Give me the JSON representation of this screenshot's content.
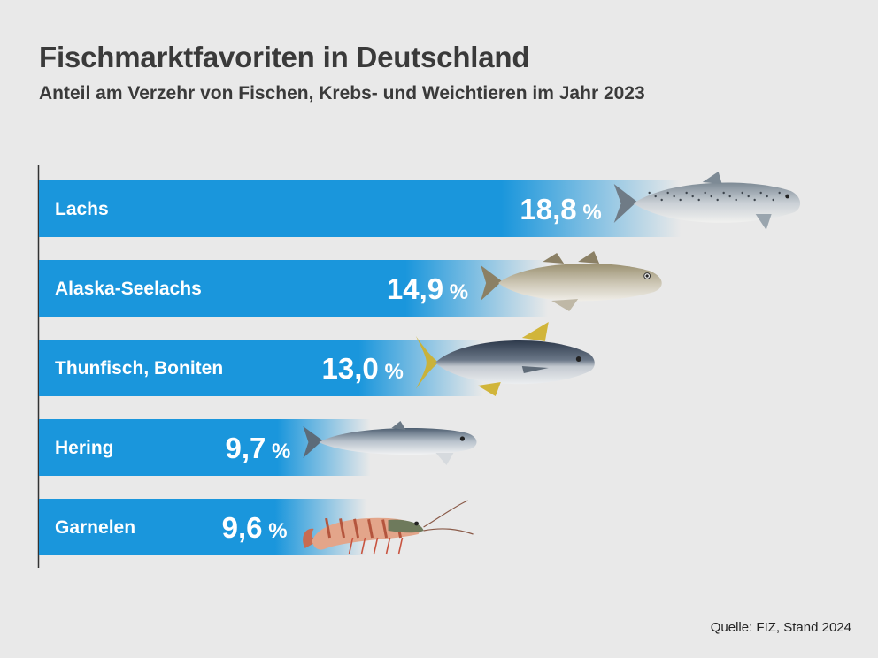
{
  "chart_data": {
    "type": "bar",
    "orientation": "horizontal",
    "title": "Fischmarktfavoriten in Deutschland",
    "subtitle": "Anteil am Verzehr von Fischen, Krebs- und Weichtieren im Jahr 2023",
    "unit": "%",
    "categories": [
      "Lachs",
      "Alaska-Seelachs",
      "Thunfisch, Boniten",
      "Hering",
      "Garnelen"
    ],
    "values": [
      18.8,
      14.9,
      13.0,
      9.7,
      9.6
    ],
    "value_labels": [
      "18,8",
      "14,9",
      "13,0",
      "9,7",
      "9,6"
    ],
    "icons": [
      "salmon-icon",
      "pollock-icon",
      "tuna-icon",
      "herring-icon",
      "shrimp-icon"
    ],
    "source": "Quelle:  FIZ, Stand 2024"
  },
  "colors": {
    "bar": "#1a96dc",
    "background": "#e9e9e9",
    "text": "#3a3a3a",
    "label": "#ffffff"
  }
}
